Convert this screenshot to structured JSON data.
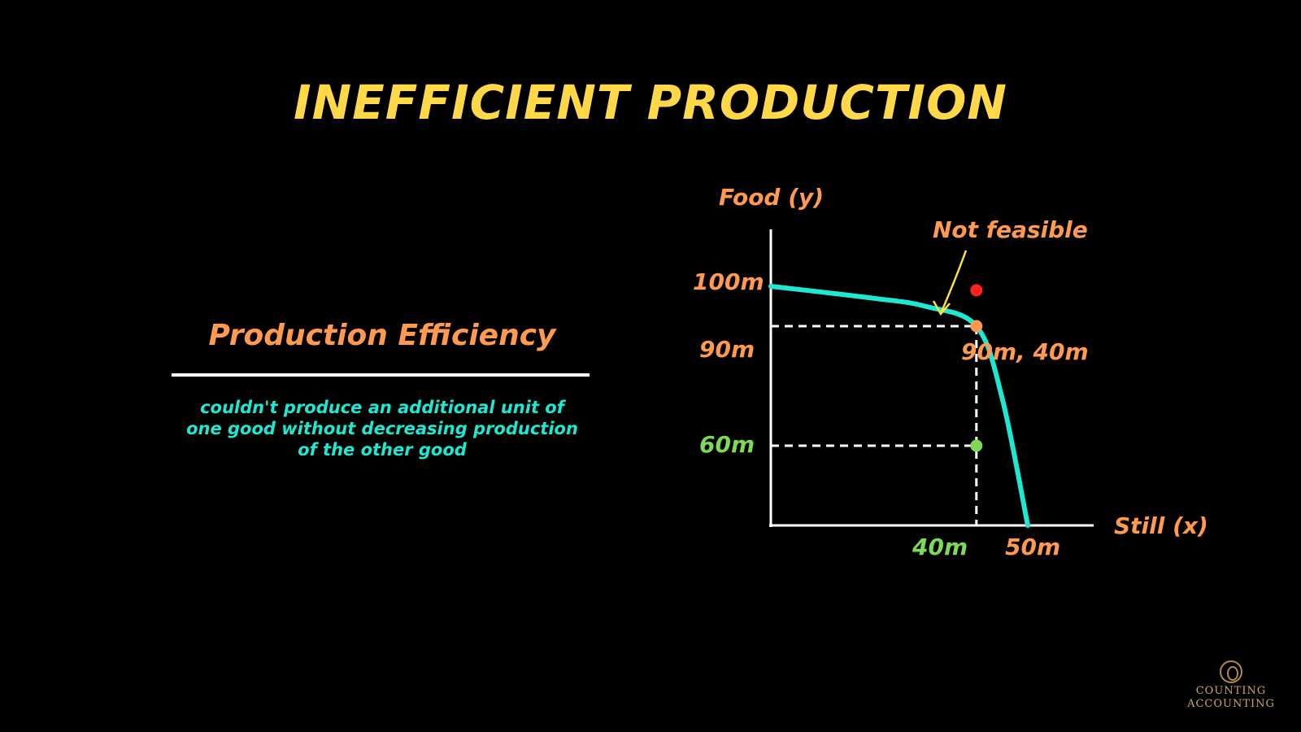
{
  "title": "INEFFICIENT PRODUCTION",
  "left": {
    "heading": "Production Efficiency",
    "description_lines": [
      "couldn't produce an additional unit of",
      "one good without decreasing production",
      "of the other good"
    ]
  },
  "chart_data": {
    "type": "line",
    "ylabel": "Food (y)",
    "xlabel": "Still (x)",
    "y_tick_labels": [
      "100m",
      "90m",
      "60m"
    ],
    "x_tick_labels": [
      "40m",
      "50m"
    ],
    "curve": {
      "name": "",
      "note": "production possibilities frontier from (0, 100m) to (50m, 0)",
      "points": [
        {
          "x": 0,
          "y": 100
        },
        {
          "x": 20,
          "y": 97
        },
        {
          "x": 30,
          "y": 95
        },
        {
          "x": 40,
          "y": 90
        },
        {
          "x": 45,
          "y": 72
        },
        {
          "x": 50,
          "y": 0
        }
      ]
    },
    "points": [
      {
        "x": 40,
        "y": 90,
        "color": "#ff9a50",
        "label": "90m, 40m"
      },
      {
        "x": 40,
        "y": 60,
        "color": "#7ed957",
        "label": ""
      },
      {
        "x": 40,
        "y": 99,
        "color": "#ff2020",
        "label": "Not feasible"
      }
    ],
    "annotation": "Not feasible",
    "point_label": "90m, 40m"
  },
  "colors": {
    "title": "#ffd84a",
    "heading": "#ff9a50",
    "description": "#1ee8d2",
    "curve": "#1ee8d2",
    "axis": "#ffffff",
    "orange": "#ff9a50",
    "green": "#7ed957",
    "red": "#ff2020",
    "arrow": "#ffe040",
    "logo": "#c9a868"
  },
  "logo": {
    "line1": "COUNTING",
    "line2": "ACCOUNTING",
    "icon": "coin-emblem-icon"
  }
}
